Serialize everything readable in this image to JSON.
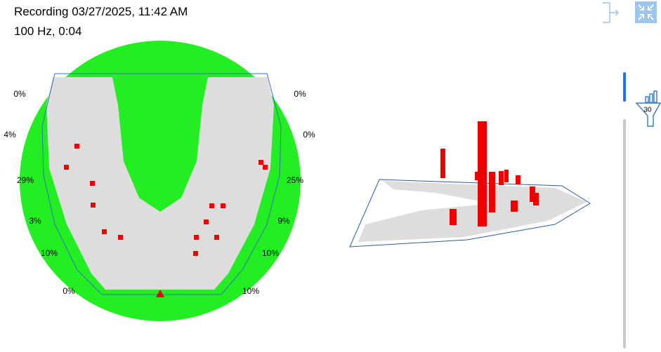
{
  "header": {
    "title": "Recording 03/27/2025, 11:42 AM",
    "subtitle": "100 Hz, 0:04"
  },
  "left_labels": [
    "0%",
    "4%",
    "29%",
    "3%",
    "10%",
    "0%"
  ],
  "right_labels": [
    "0%",
    "0%",
    "25%",
    "9%",
    "10%",
    "10%"
  ],
  "filter_badge": "30"
}
